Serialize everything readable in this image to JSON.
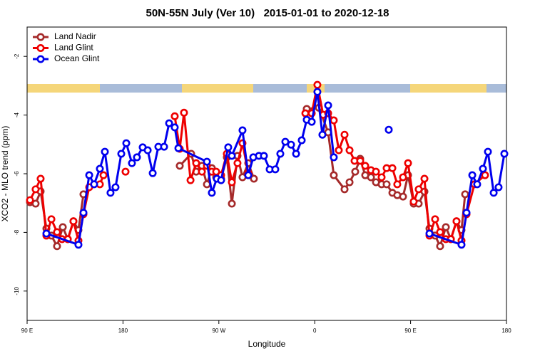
{
  "chart_data": {
    "type": "line",
    "title": "50N-55N July (Ver 10)   2015-01-01 to 2020-12-18",
    "x_label": "Longitude",
    "y_label": "XCO2 - MLO trend (ppm)",
    "xlim": [
      90,
      540
    ],
    "ylim": [
      -11,
      -1
    ],
    "xticks": [
      {
        "value": 90,
        "label": "90 E"
      },
      180,
      {
        "value": 270,
        "label": "90 W"
      },
      {
        "value": 360,
        "label": "0"
      },
      {
        "value": 450,
        "label": "90 E"
      },
      {
        "value": 540,
        "label": "180"
      }
    ],
    "yticks": [
      -2,
      -4,
      -6,
      -8,
      -10
    ],
    "legend": "top-left",
    "grid": false,
    "series": [
      {
        "name": "Land Nadir",
        "color": "#a52a2a",
        "x": [
          92.7,
          98.0,
          102.7,
          108.1,
          112.8,
          118.1,
          123.5,
          128.2,
          133.5,
          138.2,
          142.9,
          null,
          233.3,
          244.0,
          248.7,
          254.1,
          258.8,
          263.4,
          267.5,
          272.1,
          277.5,
          282.2,
          287.5,
          292.2,
          297.6,
          302.9,
          null,
          352.5,
          363.9,
          372.6,
          377.9,
          388.0,
          392.7,
          398.0,
          402.7,
          407.4,
          412.8,
          417.5,
          422.8,
          427.5,
          432.9,
          437.5,
          442.9,
          447.6,
          452.9,
          457.6,
          463.0,
          467.7,
          473.0,
          477.7,
          483.1,
          487.8,
          493.1,
          497.8,
          501.2
        ],
        "values": [
          -6.97,
          -7.02,
          -6.6,
          -7.87,
          -8.11,
          -8.47,
          -7.82,
          -8.23,
          -7.62,
          -7.92,
          -6.7,
          null,
          -5.73,
          -5.32,
          -5.93,
          -5.73,
          -6.36,
          -5.81,
          -6.12,
          -6.17,
          -5.44,
          -7.02,
          -5.39,
          -6.12,
          -5.64,
          -6.17,
          null,
          -3.79,
          -3.75,
          -4.59,
          -6.05,
          -6.53,
          -6.29,
          -5.93,
          -5.49,
          -6.05,
          -6.12,
          -6.29,
          -6.36,
          -6.36,
          -6.65,
          -6.73,
          -6.78,
          -6.05,
          -7.02,
          -7.02,
          -6.61,
          -7.87,
          -8.11,
          -8.47,
          -7.82,
          -8.23,
          -7.62,
          -7.92,
          -6.7
        ]
      },
      {
        "name": "Land Glint",
        "color": "#ee0000",
        "x": [
          92.7,
          98.0,
          102.7,
          108.1,
          112.8,
          118.1,
          122.8,
          128.2,
          133.5,
          138.2,
          142.9,
          148.3,
          158.3,
          161.7,
          null,
          182.4,
          null,
          228.6,
          233.3,
          237.3,
          243.4,
          248.7,
          254.1,
          258.8,
          263.4,
          267.5,
          272.1,
          277.5,
          282.2,
          287.5,
          292.2,
          297.6,
          null,
          351.2,
          357.2,
          362.5,
          367.9,
          372.6,
          377.9,
          382.6,
          388.0,
          392.7,
          397.4,
          402.7,
          407.4,
          412.8,
          417.5,
          422.8,
          427.5,
          432.9,
          437.5,
          442.9,
          447.6,
          452.9,
          457.6,
          463.0,
          467.7,
          473.0,
          477.7,
          483.1,
          487.8,
          493.1,
          497.8,
          502.5,
          509.9,
          519.9
        ],
        "values": [
          -6.9,
          -6.53,
          -6.17,
          -8.11,
          -7.55,
          -7.99,
          -8.23,
          -8.23,
          -7.62,
          -8.28,
          -7.38,
          -6.46,
          -6.36,
          -6.05,
          null,
          -5.93,
          null,
          -4.04,
          -5.15,
          -3.92,
          -6.22,
          -5.64,
          -5.93,
          -5.73,
          -5.93,
          -5.93,
          -6.05,
          -5.32,
          -6.29,
          -5.64,
          -4.96,
          -5.98,
          null,
          -3.94,
          -3.94,
          -2.97,
          -3.99,
          -3.94,
          -4.18,
          -5.2,
          -4.67,
          -5.2,
          -5.56,
          -5.56,
          -5.73,
          -5.88,
          -5.93,
          -6.12,
          -5.81,
          -5.81,
          -6.36,
          -6.12,
          -5.64,
          -6.95,
          -6.53,
          -6.17,
          -8.11,
          -7.55,
          -7.99,
          -8.23,
          -8.23,
          -7.62,
          -8.28,
          -7.38,
          -6.36,
          -6.05
        ]
      },
      {
        "name": "Ocean Glint",
        "color": "#0000ee",
        "x": [
          108.1,
          138.2,
          142.9,
          148.3,
          152.9,
          158.3,
          163.0,
          168.3,
          173.0,
          178.4,
          183.1,
          188.4,
          193.1,
          198.5,
          203.2,
          207.9,
          213.2,
          218.6,
          223.3,
          228.6,
          232.0,
          258.8,
          263.4,
          268.1,
          272.1,
          278.8,
          282.2,
          292.2,
          297.6,
          302.3,
          307.6,
          312.3,
          317.7,
          323.0,
          327.7,
          332.4,
          337.8,
          342.5,
          347.8,
          352.5,
          357.2,
          362.5,
          367.2,
          372.6,
          377.9,
          null,
          429.5,
          null,
          467.7,
          497.8,
          502.5,
          507.9,
          512.5,
          517.9,
          522.6,
          528.0,
          532.6,
          538.0
        ],
        "values": [
          -8.04,
          -8.42,
          -7.33,
          -6.05,
          -6.36,
          -5.83,
          -5.25,
          -6.65,
          -6.46,
          -5.32,
          -4.96,
          -5.64,
          -5.44,
          -5.1,
          -5.2,
          -5.98,
          -5.08,
          -5.08,
          -4.28,
          -4.42,
          -5.13,
          -5.59,
          -6.65,
          -6.17,
          -6.22,
          -5.1,
          -5.39,
          -4.52,
          -6.05,
          -5.44,
          -5.39,
          -5.39,
          -5.85,
          -5.85,
          -5.32,
          -4.91,
          -5.01,
          -5.32,
          -4.86,
          -4.16,
          -4.23,
          -3.21,
          -4.67,
          -3.67,
          -5.44,
          null,
          -4.5,
          null,
          -8.04,
          -8.42,
          -7.33,
          -6.05,
          -6.36,
          -5.83,
          -5.25,
          -6.65,
          -6.46,
          -5.32
        ]
      }
    ]
  }
}
